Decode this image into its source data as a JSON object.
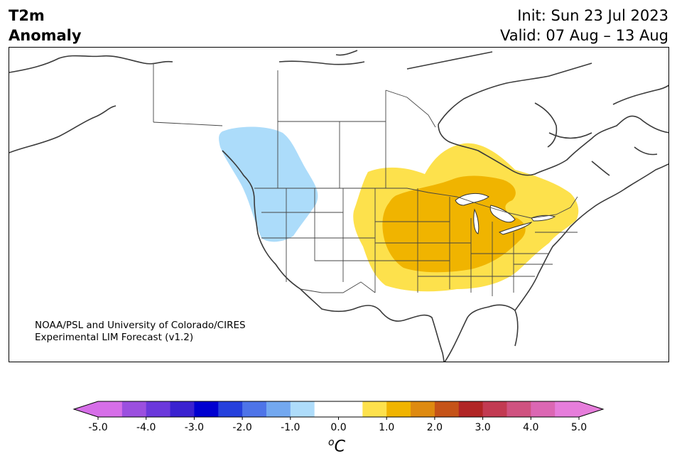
{
  "header": {
    "title_line1": "T2m",
    "title_line2": "Anomaly",
    "init": "Init: Sun 23 Jul 2023",
    "valid": "Valid: 07 Aug – 13 Aug"
  },
  "credit": {
    "line1": "NOAA/PSL and University of Colorado/CIRES",
    "line2": "Experimental LIM Forecast (v1.2)"
  },
  "colorbar": {
    "unit_base": "C",
    "unit_sup": "o",
    "ticks": [
      "-5.0",
      "-4.0",
      "-3.0",
      "-2.0",
      "-1.0",
      "0.0",
      "1.0",
      "2.0",
      "3.0",
      "4.0",
      "5.0"
    ],
    "colors": [
      "#d66ee8",
      "#9b4fdf",
      "#6b38db",
      "#3a22d0",
      "#0000d0",
      "#2540dc",
      "#4e74e8",
      "#73a8f0",
      "#aedcfa",
      "#ffffff",
      "#ffffff",
      "#fde14c",
      "#f0b400",
      "#de8a10",
      "#c55318",
      "#b12525",
      "#c23a52",
      "#cf5280",
      "#db67b3",
      "#e67ddb"
    ],
    "left_extend_color": "#d66ee8",
    "right_extend_color": "#e67ddb"
  },
  "legend_anomalies": [
    {
      "name": "cold-anomaly-northwest",
      "color": "#acdcfa",
      "level": "-1.0 to -0.5"
    },
    {
      "name": "warm-anomaly-central-east",
      "color": "#fde14c",
      "level": "0.5 to 1.0"
    },
    {
      "name": "warm-anomaly-core",
      "color": "#f0b400",
      "level": "1.0 to 1.5"
    }
  ]
}
